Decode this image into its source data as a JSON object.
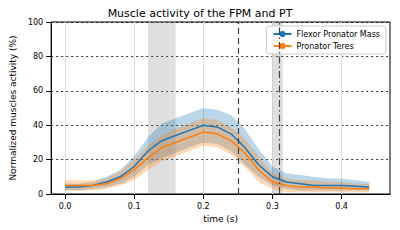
{
  "chart_data": {
    "type": "line",
    "title": "Muscle activity of the FPM and PT",
    "x_label": "time (s)",
    "y_label": "Normalized muscles activity (%)",
    "x": [
      0,
      0.02,
      0.04,
      0.06,
      0.08,
      0.1,
      0.12,
      0.14,
      0.16,
      0.18,
      0.2,
      0.22,
      0.24,
      0.26,
      0.28,
      0.3,
      0.32,
      0.34,
      0.36,
      0.38,
      0.4,
      0.42,
      0.44
    ],
    "series": [
      {
        "name": "Flexor Pronator Mass",
        "color": "#1f77b4",
        "values": [
          4,
          4,
          5,
          7,
          10,
          16,
          25,
          31,
          34,
          37,
          40,
          39,
          35,
          27,
          17,
          10,
          7,
          6,
          5,
          5,
          5,
          4.5,
          4
        ],
        "upper": [
          6,
          6,
          7,
          10,
          14,
          22,
          33,
          41,
          44,
          47,
          50,
          49,
          46,
          38,
          26,
          16,
          12,
          11,
          10,
          9,
          9,
          8,
          7
        ],
        "lower": [
          2,
          2,
          3,
          4,
          6,
          10,
          17,
          21,
          24,
          27,
          30,
          29,
          25,
          17,
          10,
          5,
          3,
          2,
          2,
          2,
          2,
          2,
          2
        ]
      },
      {
        "name": "Pronator Teres",
        "color": "#ff7f0e",
        "values": [
          5,
          5,
          5,
          6,
          9,
          14,
          21,
          27,
          30,
          33,
          36,
          35,
          31,
          24,
          14,
          7,
          5,
          4,
          4,
          3.5,
          3.5,
          3,
          3
        ],
        "upper": [
          8,
          8,
          8,
          9,
          13,
          20,
          28,
          34,
          38,
          41,
          44,
          43,
          39,
          32,
          22,
          12,
          9,
          8,
          8,
          7,
          7,
          6,
          6
        ],
        "lower": [
          2,
          2,
          2,
          3,
          5,
          8,
          14,
          19,
          22,
          25,
          28,
          27,
          23,
          16,
          7,
          3,
          1,
          1,
          1,
          1,
          1,
          1,
          1
        ]
      }
    ],
    "vlines": [
      {
        "x": 0.25,
        "line_style": "dashed"
      },
      {
        "x": 0.31,
        "line_style": "dashdot"
      }
    ],
    "spans": [
      [
        0.12,
        0.16
      ],
      [
        0.3,
        0.315
      ]
    ],
    "xlim": [
      -0.02,
      0.47
    ],
    "xticks": [
      {
        "value": 0,
        "label": "0.0"
      },
      0.1,
      0.2,
      0.3,
      0.4
    ],
    "ylim": [
      0,
      100
    ],
    "yticks": [
      0,
      20,
      40,
      60,
      80,
      100
    ],
    "grid": true,
    "legend": "upper right"
  }
}
